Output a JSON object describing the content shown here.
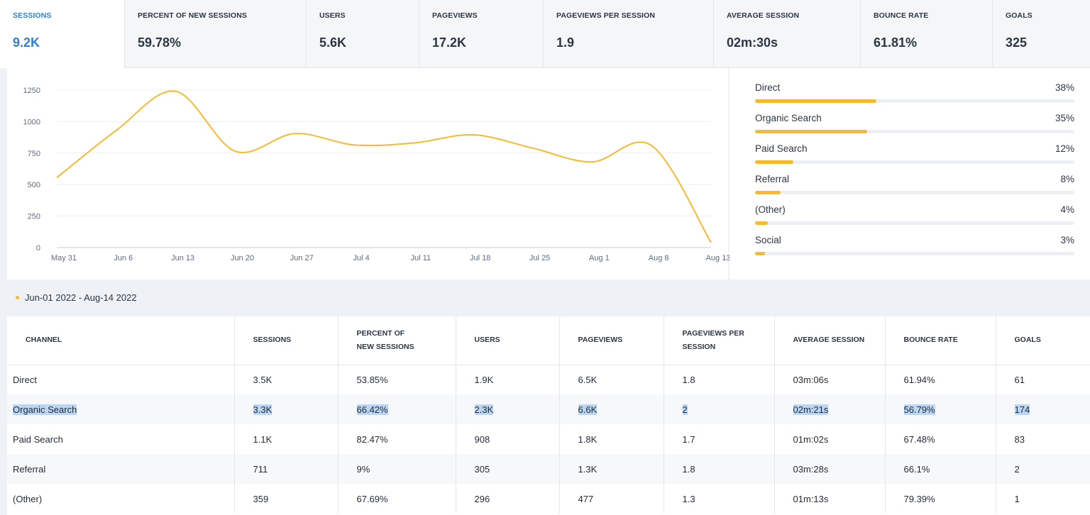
{
  "metrics": [
    {
      "label": "SESSIONS",
      "value": "9.2K",
      "active": true
    },
    {
      "label": "PERCENT OF NEW SESSIONS",
      "value": "59.78%"
    },
    {
      "label": "USERS",
      "value": "5.6K"
    },
    {
      "label": "PAGEVIEWS",
      "value": "17.2K"
    },
    {
      "label": "PAGEVIEWS PER SESSION",
      "value": "1.9"
    },
    {
      "label": "AVERAGE SESSION",
      "value": "02m:30s"
    },
    {
      "label": "BOUNCE RATE",
      "value": "61.81%"
    },
    {
      "label": "GOALS",
      "value": "325"
    }
  ],
  "chart_data": {
    "type": "line",
    "title": "",
    "xlabel": "",
    "ylabel": "",
    "x": [
      "May 31",
      "Jun 6",
      "Jun 13",
      "Jun 20",
      "Jun 27",
      "Jul 4",
      "Jul 11",
      "Jul 18",
      "Jul 25",
      "Aug 1",
      "Aug 8",
      "Aug 13"
    ],
    "series": [
      {
        "values": [
          555,
          930,
          1240,
          765,
          905,
          815,
          830,
          895,
          790,
          680,
          810,
          40
        ]
      }
    ],
    "y_ticks": [
      0,
      250,
      500,
      750,
      1000,
      1250
    ],
    "ylim": [
      0,
      1250
    ],
    "grid": true,
    "color": "#f7b92f"
  },
  "traffic_sources": [
    {
      "name": "Direct",
      "pct_label": "38%",
      "pct": 38
    },
    {
      "name": "Organic Search",
      "pct_label": "35%",
      "pct": 35
    },
    {
      "name": "Paid Search",
      "pct_label": "12%",
      "pct": 12
    },
    {
      "name": "Referral",
      "pct_label": "8%",
      "pct": 8
    },
    {
      "name": "(Other)",
      "pct_label": "4%",
      "pct": 4
    },
    {
      "name": "Social",
      "pct_label": "3%",
      "pct": 3
    }
  ],
  "legend": {
    "range": "Jun-01 2022 - Aug-14 2022"
  },
  "table": {
    "headers": [
      "CHANNEL",
      "SESSIONS",
      "PERCENT OF NEW SESSIONS",
      "USERS",
      "PAGEVIEWS",
      "PAGEVIEWS PER SESSION",
      "AVERAGE SESSION",
      "BOUNCE RATE",
      "GOALS"
    ],
    "rows": [
      [
        "Direct",
        "3.5K",
        "53.85%",
        "1.9K",
        "6.5K",
        "1.8",
        "03m:06s",
        "61.94%",
        "61"
      ],
      [
        "Organic Search",
        "3.3K",
        "66.42%",
        "2.3K",
        "6.6K",
        "2",
        "02m:21s",
        "56.79%",
        "174"
      ],
      [
        "Paid Search",
        "1.1K",
        "82.47%",
        "908",
        "1.8K",
        "1.7",
        "01m:02s",
        "67.48%",
        "83"
      ],
      [
        "Referral",
        "711",
        "9%",
        "305",
        "1.3K",
        "1.8",
        "03m:28s",
        "66.1%",
        "2"
      ],
      [
        "(Other)",
        "359",
        "67.69%",
        "296",
        "477",
        "1.3",
        "01m:13s",
        "79.39%",
        "1"
      ]
    ],
    "selected_row": 1
  }
}
